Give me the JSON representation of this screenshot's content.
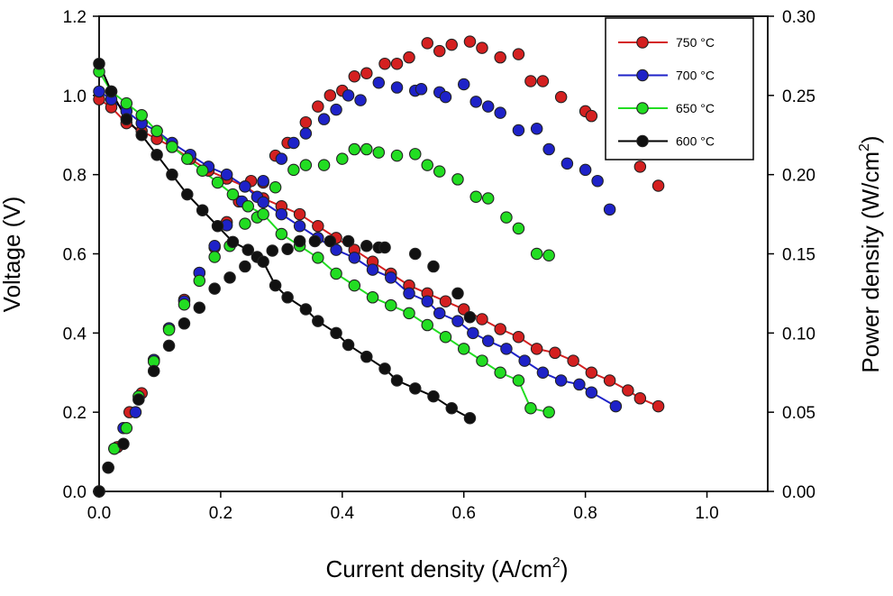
{
  "chart_data": {
    "type": "scatter",
    "title": "",
    "xlabel": "Current density (A/cm",
    "xlabel_sup": "2",
    "xlabel_end": ")",
    "ylabel": "Voltage (V)",
    "y2label": "Power density (W/cm",
    "y2label_sup": "2",
    "y2label_end": ")",
    "xlim": [
      0.0,
      1.1
    ],
    "ylim": [
      0.0,
      1.2
    ],
    "y2lim": [
      0.0,
      0.3
    ],
    "xticks": [
      "0.0",
      "0.2",
      "0.4",
      "0.6",
      "0.8",
      "1.0"
    ],
    "yticks": [
      "0.0",
      "0.2",
      "0.4",
      "0.6",
      "0.8",
      "1.0",
      "1.2"
    ],
    "y2ticks": [
      "0.00",
      "0.05",
      "0.10",
      "0.15",
      "0.20",
      "0.25",
      "0.30"
    ],
    "grid": false,
    "legend_position": "top-right",
    "series": [
      {
        "name": "750 °C",
        "color": "#d42020",
        "voltage": [
          [
            0.0,
            0.99
          ],
          [
            0.02,
            0.97
          ],
          [
            0.045,
            0.93
          ],
          [
            0.07,
            0.91
          ],
          [
            0.095,
            0.89
          ],
          [
            0.12,
            0.87
          ],
          [
            0.15,
            0.84
          ],
          [
            0.18,
            0.81
          ],
          [
            0.21,
            0.79
          ],
          [
            0.24,
            0.77
          ],
          [
            0.27,
            0.74
          ],
          [
            0.3,
            0.72
          ],
          [
            0.33,
            0.7
          ],
          [
            0.36,
            0.67
          ],
          [
            0.39,
            0.64
          ],
          [
            0.42,
            0.61
          ],
          [
            0.45,
            0.58
          ],
          [
            0.48,
            0.55
          ],
          [
            0.51,
            0.52
          ],
          [
            0.54,
            0.5
          ],
          [
            0.57,
            0.48
          ],
          [
            0.6,
            0.46
          ],
          [
            0.63,
            0.435
          ],
          [
            0.66,
            0.41
          ],
          [
            0.69,
            0.39
          ],
          [
            0.72,
            0.36
          ],
          [
            0.75,
            0.35
          ],
          [
            0.78,
            0.33
          ],
          [
            0.81,
            0.3
          ],
          [
            0.84,
            0.28
          ],
          [
            0.87,
            0.255
          ],
          [
            0.89,
            0.235
          ],
          [
            0.92,
            0.215
          ]
        ],
        "power": [
          [
            0.0,
            0.0
          ],
          [
            0.015,
            0.015
          ],
          [
            0.03,
            0.028
          ],
          [
            0.05,
            0.05
          ],
          [
            0.07,
            0.062
          ],
          [
            0.09,
            0.083
          ],
          [
            0.115,
            0.103
          ],
          [
            0.14,
            0.121
          ],
          [
            0.165,
            0.138
          ],
          [
            0.19,
            0.154
          ],
          [
            0.21,
            0.17
          ],
          [
            0.23,
            0.183
          ],
          [
            0.25,
            0.196
          ],
          [
            0.27,
            0.195
          ],
          [
            0.29,
            0.212
          ],
          [
            0.31,
            0.22
          ],
          [
            0.34,
            0.233
          ],
          [
            0.36,
            0.243
          ],
          [
            0.38,
            0.25
          ],
          [
            0.4,
            0.253
          ],
          [
            0.42,
            0.262
          ],
          [
            0.44,
            0.264
          ],
          [
            0.47,
            0.27
          ],
          [
            0.49,
            0.27
          ],
          [
            0.51,
            0.274
          ],
          [
            0.54,
            0.283
          ],
          [
            0.56,
            0.278
          ],
          [
            0.58,
            0.282
          ],
          [
            0.61,
            0.284
          ],
          [
            0.63,
            0.28
          ],
          [
            0.66,
            0.274
          ],
          [
            0.69,
            0.276
          ],
          [
            0.71,
            0.259
          ],
          [
            0.73,
            0.259
          ],
          [
            0.76,
            0.249
          ],
          [
            0.8,
            0.24
          ],
          [
            0.81,
            0.237
          ],
          [
            0.89,
            0.205
          ],
          [
            0.92,
            0.193
          ]
        ]
      },
      {
        "name": "700 °C",
        "color": "#1e22c8",
        "voltage": [
          [
            0.0,
            1.01
          ],
          [
            0.02,
            0.99
          ],
          [
            0.045,
            0.96
          ],
          [
            0.07,
            0.93
          ],
          [
            0.095,
            0.91
          ],
          [
            0.12,
            0.88
          ],
          [
            0.15,
            0.85
          ],
          [
            0.18,
            0.82
          ],
          [
            0.21,
            0.8
          ],
          [
            0.24,
            0.77
          ],
          [
            0.27,
            0.73
          ],
          [
            0.3,
            0.7
          ],
          [
            0.33,
            0.67
          ],
          [
            0.36,
            0.64
          ],
          [
            0.39,
            0.61
          ],
          [
            0.42,
            0.59
          ],
          [
            0.45,
            0.56
          ],
          [
            0.48,
            0.54
          ],
          [
            0.51,
            0.5
          ],
          [
            0.54,
            0.48
          ],
          [
            0.56,
            0.45
          ],
          [
            0.59,
            0.43
          ],
          [
            0.615,
            0.4
          ],
          [
            0.64,
            0.38
          ],
          [
            0.67,
            0.36
          ],
          [
            0.7,
            0.33
          ],
          [
            0.73,
            0.3
          ],
          [
            0.76,
            0.28
          ],
          [
            0.79,
            0.27
          ],
          [
            0.81,
            0.25
          ],
          [
            0.85,
            0.215
          ]
        ],
        "power": [
          [
            0.0,
            0.0
          ],
          [
            0.025,
            0.027
          ],
          [
            0.04,
            0.04
          ],
          [
            0.06,
            0.05
          ],
          [
            0.09,
            0.083
          ],
          [
            0.115,
            0.103
          ],
          [
            0.14,
            0.12
          ],
          [
            0.165,
            0.138
          ],
          [
            0.19,
            0.155
          ],
          [
            0.21,
            0.168
          ],
          [
            0.235,
            0.183
          ],
          [
            0.26,
            0.186
          ],
          [
            0.27,
            0.196
          ],
          [
            0.3,
            0.21
          ],
          [
            0.32,
            0.22
          ],
          [
            0.34,
            0.226
          ],
          [
            0.37,
            0.235
          ],
          [
            0.39,
            0.241
          ],
          [
            0.41,
            0.25
          ],
          [
            0.43,
            0.247
          ],
          [
            0.46,
            0.258
          ],
          [
            0.49,
            0.255
          ],
          [
            0.52,
            0.253
          ],
          [
            0.53,
            0.254
          ],
          [
            0.56,
            0.252
          ],
          [
            0.57,
            0.249
          ],
          [
            0.6,
            0.257
          ],
          [
            0.62,
            0.246
          ],
          [
            0.64,
            0.243
          ],
          [
            0.66,
            0.239
          ],
          [
            0.69,
            0.228
          ],
          [
            0.72,
            0.229
          ],
          [
            0.74,
            0.216
          ],
          [
            0.77,
            0.207
          ],
          [
            0.8,
            0.203
          ],
          [
            0.82,
            0.196
          ],
          [
            0.84,
            0.178
          ]
        ]
      },
      {
        "name": "650 °C",
        "color": "#22dd22",
        "voltage": [
          [
            0.0,
            1.06
          ],
          [
            0.02,
            1.01
          ],
          [
            0.045,
            0.98
          ],
          [
            0.07,
            0.95
          ],
          [
            0.095,
            0.91
          ],
          [
            0.12,
            0.87
          ],
          [
            0.145,
            0.84
          ],
          [
            0.17,
            0.81
          ],
          [
            0.195,
            0.78
          ],
          [
            0.22,
            0.75
          ],
          [
            0.245,
            0.72
          ],
          [
            0.27,
            0.7
          ],
          [
            0.3,
            0.65
          ],
          [
            0.33,
            0.62
          ],
          [
            0.36,
            0.59
          ],
          [
            0.39,
            0.55
          ],
          [
            0.42,
            0.52
          ],
          [
            0.45,
            0.49
          ],
          [
            0.48,
            0.47
          ],
          [
            0.51,
            0.45
          ],
          [
            0.54,
            0.42
          ],
          [
            0.57,
            0.39
          ],
          [
            0.6,
            0.36
          ],
          [
            0.63,
            0.33
          ],
          [
            0.66,
            0.3
          ],
          [
            0.69,
            0.28
          ],
          [
            0.71,
            0.21
          ],
          [
            0.74,
            0.2
          ]
        ],
        "power": [
          [
            0.0,
            0.0
          ],
          [
            0.025,
            0.027
          ],
          [
            0.045,
            0.04
          ],
          [
            0.065,
            0.06
          ],
          [
            0.09,
            0.082
          ],
          [
            0.115,
            0.102
          ],
          [
            0.14,
            0.118
          ],
          [
            0.165,
            0.133
          ],
          [
            0.19,
            0.148
          ],
          [
            0.215,
            0.155
          ],
          [
            0.24,
            0.169
          ],
          [
            0.26,
            0.173
          ],
          [
            0.29,
            0.192
          ],
          [
            0.32,
            0.203
          ],
          [
            0.34,
            0.206
          ],
          [
            0.37,
            0.206
          ],
          [
            0.4,
            0.21
          ],
          [
            0.42,
            0.216
          ],
          [
            0.44,
            0.216
          ],
          [
            0.46,
            0.214
          ],
          [
            0.49,
            0.212
          ],
          [
            0.52,
            0.213
          ],
          [
            0.54,
            0.206
          ],
          [
            0.56,
            0.202
          ],
          [
            0.59,
            0.197
          ],
          [
            0.62,
            0.186
          ],
          [
            0.64,
            0.185
          ],
          [
            0.67,
            0.173
          ],
          [
            0.69,
            0.166
          ],
          [
            0.72,
            0.15
          ],
          [
            0.74,
            0.149
          ]
        ]
      },
      {
        "name": "600 °C",
        "color": "#111111",
        "voltage": [
          [
            0.0,
            1.08
          ],
          [
            0.02,
            1.01
          ],
          [
            0.045,
            0.94
          ],
          [
            0.07,
            0.9
          ],
          [
            0.095,
            0.85
          ],
          [
            0.12,
            0.8
          ],
          [
            0.145,
            0.75
          ],
          [
            0.17,
            0.71
          ],
          [
            0.195,
            0.67
          ],
          [
            0.22,
            0.63
          ],
          [
            0.245,
            0.61
          ],
          [
            0.27,
            0.58
          ],
          [
            0.29,
            0.52
          ],
          [
            0.31,
            0.49
          ],
          [
            0.34,
            0.46
          ],
          [
            0.36,
            0.43
          ],
          [
            0.39,
            0.4
          ],
          [
            0.41,
            0.37
          ],
          [
            0.44,
            0.34
          ],
          [
            0.47,
            0.31
          ],
          [
            0.49,
            0.28
          ],
          [
            0.52,
            0.26
          ],
          [
            0.55,
            0.24
          ],
          [
            0.58,
            0.21
          ],
          [
            0.61,
            0.185
          ]
        ],
        "power": [
          [
            0.0,
            0.0
          ],
          [
            0.015,
            0.015
          ],
          [
            0.04,
            0.03
          ],
          [
            0.065,
            0.058
          ],
          [
            0.09,
            0.076
          ],
          [
            0.115,
            0.092
          ],
          [
            0.14,
            0.106
          ],
          [
            0.165,
            0.116
          ],
          [
            0.19,
            0.128
          ],
          [
            0.215,
            0.135
          ],
          [
            0.24,
            0.142
          ],
          [
            0.26,
            0.148
          ],
          [
            0.285,
            0.152
          ],
          [
            0.31,
            0.153
          ],
          [
            0.33,
            0.158
          ],
          [
            0.355,
            0.158
          ],
          [
            0.38,
            0.158
          ],
          [
            0.41,
            0.158
          ],
          [
            0.44,
            0.155
          ],
          [
            0.46,
            0.154
          ],
          [
            0.47,
            0.154
          ],
          [
            0.52,
            0.15
          ],
          [
            0.55,
            0.142
          ],
          [
            0.59,
            0.125
          ],
          [
            0.61,
            0.11
          ]
        ]
      }
    ]
  }
}
